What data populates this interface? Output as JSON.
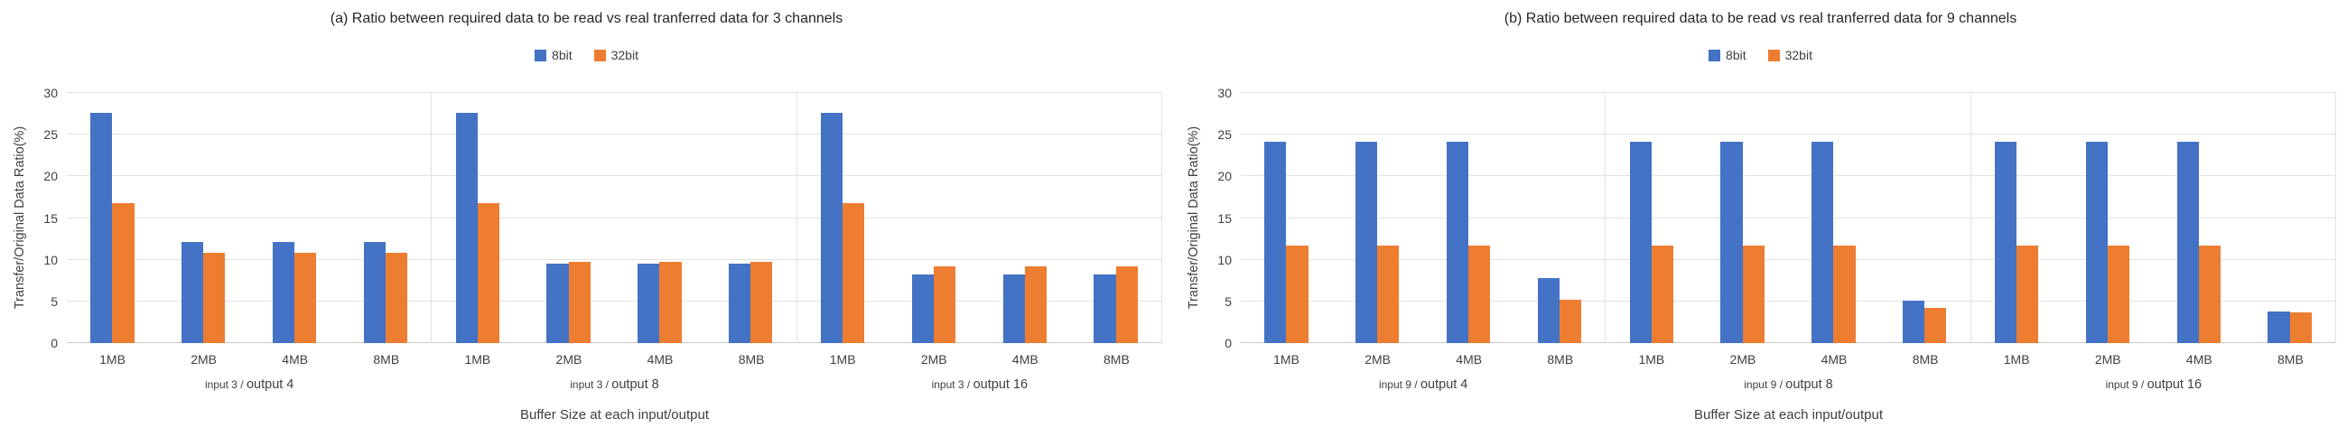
{
  "colors": {
    "8bit": "#4472C4",
    "32bit": "#ED7D31",
    "gridline": "#E2E2E2",
    "axis_line": "#C9C9C9",
    "text": "#404040"
  },
  "chart_data": [
    {
      "type": "bar",
      "title": "(a) Ratio between required data to be read vs real tranferred data for 3 channels",
      "legend": [
        "8bit",
        "32bit"
      ],
      "legend_position": "top",
      "ylabel": "Transfer/Original Data Ratio(%)",
      "xlabel": "Buffer Size at each input/output",
      "ylim": [
        0,
        30
      ],
      "yticks": [
        0,
        5,
        10,
        15,
        20,
        25,
        30
      ],
      "grid": true,
      "groups": [
        {
          "label_prefix": "input 3 /",
          "label_suffix": "output 4",
          "categories": [
            "1MB",
            "2MB",
            "4MB",
            "8MB"
          ],
          "series": [
            {
              "name": "8bit",
              "values": [
                27.6,
                12.1,
                12.1,
                12.1
              ]
            },
            {
              "name": "32bit",
              "values": [
                16.8,
                10.8,
                10.8,
                10.8
              ]
            }
          ]
        },
        {
          "label_prefix": "input 3 /",
          "label_suffix": "output 8",
          "categories": [
            "1MB",
            "2MB",
            "4MB",
            "8MB"
          ],
          "series": [
            {
              "name": "8bit",
              "values": [
                27.6,
                9.5,
                9.5,
                9.5
              ]
            },
            {
              "name": "32bit",
              "values": [
                16.8,
                9.8,
                9.8,
                9.8
              ]
            }
          ]
        },
        {
          "label_prefix": "input 3 /",
          "label_suffix": "output 16",
          "categories": [
            "1MB",
            "2MB",
            "4MB",
            "8MB"
          ],
          "series": [
            {
              "name": "8bit",
              "values": [
                27.6,
                8.2,
                8.2,
                8.2
              ]
            },
            {
              "name": "32bit",
              "values": [
                16.8,
                9.2,
                9.2,
                9.2
              ]
            }
          ]
        }
      ]
    },
    {
      "type": "bar",
      "title": "(b) Ratio between required data to be read vs real tranferred data for 9 channels",
      "legend": [
        "8bit",
        "32bit"
      ],
      "legend_position": "top",
      "ylabel": "Transfer/Original Data Ratio(%)",
      "xlabel": "Buffer Size at each input/output",
      "ylim": [
        0,
        30
      ],
      "yticks": [
        0,
        5,
        10,
        15,
        20,
        25,
        30
      ],
      "grid": true,
      "groups": [
        {
          "label_prefix": "input 9 /",
          "label_suffix": "output 4",
          "categories": [
            "1MB",
            "2MB",
            "4MB",
            "8MB"
          ],
          "series": [
            {
              "name": "8bit",
              "values": [
                24.2,
                24.2,
                24.2,
                7.8
              ]
            },
            {
              "name": "32bit",
              "values": [
                11.7,
                11.7,
                11.7,
                5.2
              ]
            }
          ]
        },
        {
          "label_prefix": "input 9 /",
          "label_suffix": "output 8",
          "categories": [
            "1MB",
            "2MB",
            "4MB",
            "8MB"
          ],
          "series": [
            {
              "name": "8bit",
              "values": [
                24.2,
                24.2,
                24.2,
                5.1
              ]
            },
            {
              "name": "32bit",
              "values": [
                11.7,
                11.7,
                11.7,
                4.2
              ]
            }
          ]
        },
        {
          "label_prefix": "input 9 /",
          "label_suffix": "output 16",
          "categories": [
            "1MB",
            "2MB",
            "4MB",
            "8MB"
          ],
          "series": [
            {
              "name": "8bit",
              "values": [
                24.2,
                24.2,
                24.2,
                3.8
              ]
            },
            {
              "name": "32bit",
              "values": [
                11.7,
                11.7,
                11.7,
                3.7
              ]
            }
          ]
        }
      ]
    }
  ]
}
